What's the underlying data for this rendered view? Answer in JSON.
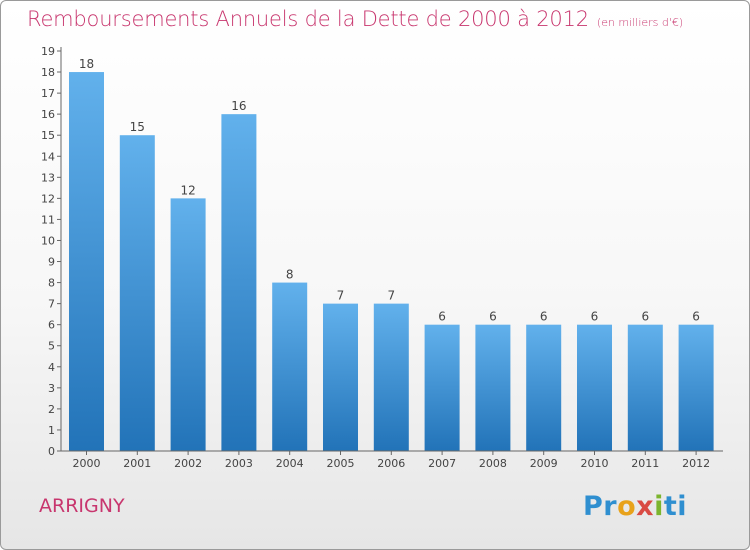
{
  "title": "Remboursements Annuels de la Dette de 2000 à 2012",
  "subtitle": "(en milliers d'€)",
  "commune": "ARRIGNY",
  "logo": {
    "p": "Pr",
    "o": "o",
    "x": "x",
    "i": "i",
    "t": "ti"
  },
  "colors": {
    "accent": "#c8366e",
    "bar": "#3a8fd6"
  },
  "chart_data": {
    "type": "bar",
    "title": "Remboursements Annuels de la Dette de 2000 à 2012",
    "subtitle": "(en milliers d'€)",
    "categories": [
      "2000",
      "2001",
      "2002",
      "2003",
      "2004",
      "2005",
      "2006",
      "2007",
      "2008",
      "2009",
      "2010",
      "2011",
      "2012"
    ],
    "values": [
      18,
      15,
      12,
      16,
      8,
      7,
      7,
      6,
      6,
      6,
      6,
      6,
      6
    ],
    "ylim": [
      0,
      19
    ],
    "yticks": [
      0,
      1,
      2,
      3,
      4,
      5,
      6,
      7,
      8,
      9,
      10,
      11,
      12,
      13,
      14,
      15,
      16,
      17,
      18,
      19
    ],
    "grid": false,
    "data_labels": true
  }
}
